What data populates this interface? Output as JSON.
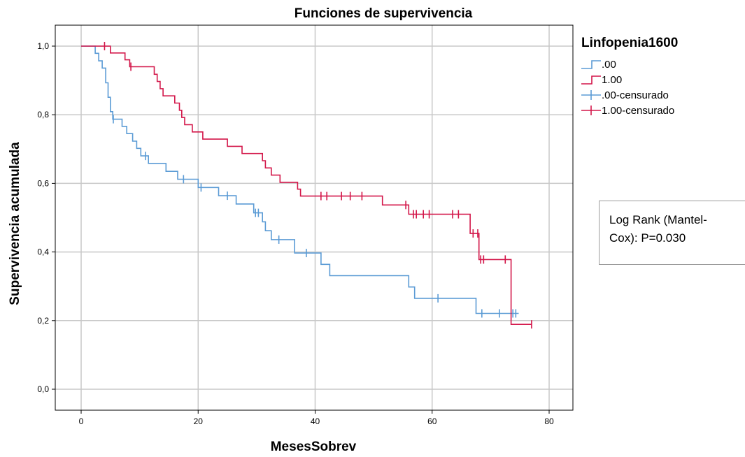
{
  "chart_data": {
    "type": "line",
    "step": true,
    "title": "Funciones de supervivencia",
    "xlabel": "MesesSobrev",
    "ylabel": "Supervivencia acumulada",
    "xlim": [
      -5,
      82
    ],
    "ylim": [
      -0.06,
      1.06
    ],
    "xticks": [
      0,
      20,
      40,
      60,
      80
    ],
    "xtick_labels": [
      "0",
      "20",
      "40",
      "60",
      "80"
    ],
    "yticks": [
      0.0,
      0.2,
      0.4,
      0.6,
      0.8,
      1.0
    ],
    "ytick_labels": [
      "0,0",
      "0,2",
      "0,4",
      "0,6",
      "0,8",
      "1,0"
    ],
    "grid": true,
    "legend_title": "Linfopenia1600",
    "legend_position": "top-right",
    "legend": [
      {
        "label": ".00",
        "kind": "line",
        "color": "#5b9bd5"
      },
      {
        "label": "1.00",
        "kind": "line",
        "color": "#d3174a"
      },
      {
        "label": ".00-censurado",
        "kind": "censor",
        "color": "#5b9bd5"
      },
      {
        "label": "1.00-censurado",
        "kind": "censor",
        "color": "#d3174a"
      }
    ],
    "series": [
      {
        "name": ".00",
        "color": "#5b9bd5",
        "x": [
          0,
          2.4,
          3.0,
          3.6,
          4.2,
          4.6,
          5.0,
          5.4,
          7.0,
          7.8,
          8.8,
          9.5,
          10.2,
          11.5,
          14.5,
          16.5,
          20.0,
          23.5,
          26.5,
          29.5,
          31.0,
          31.5,
          32.5,
          36.5,
          41.0,
          42.5,
          56.0,
          57.0,
          67.0,
          67.5,
          74.8
        ],
        "y": [
          1.0,
          0.979,
          0.957,
          0.936,
          0.893,
          0.851,
          0.809,
          0.787,
          0.766,
          0.745,
          0.723,
          0.702,
          0.68,
          0.658,
          0.635,
          0.612,
          0.588,
          0.564,
          0.54,
          0.514,
          0.488,
          0.462,
          0.436,
          0.397,
          0.364,
          0.331,
          0.298,
          0.265,
          0.265,
          0.221,
          0.221
        ],
        "censored": [
          {
            "x": 5.5,
            "y": 0.787
          },
          {
            "x": 11.0,
            "y": 0.68
          },
          {
            "x": 17.5,
            "y": 0.612
          },
          {
            "x": 20.5,
            "y": 0.588
          },
          {
            "x": 25.0,
            "y": 0.564
          },
          {
            "x": 29.8,
            "y": 0.514
          },
          {
            "x": 30.3,
            "y": 0.514
          },
          {
            "x": 33.8,
            "y": 0.436
          },
          {
            "x": 38.5,
            "y": 0.397
          },
          {
            "x": 61.0,
            "y": 0.265
          },
          {
            "x": 68.5,
            "y": 0.221
          },
          {
            "x": 71.5,
            "y": 0.221
          },
          {
            "x": 73.8,
            "y": 0.221
          },
          {
            "x": 74.3,
            "y": 0.221
          }
        ]
      },
      {
        "name": "1.00",
        "color": "#d3174a",
        "x": [
          0,
          5.0,
          7.5,
          8.3,
          12.5,
          13.0,
          13.5,
          14.0,
          16.0,
          16.8,
          17.2,
          17.7,
          19.0,
          20.8,
          25.0,
          27.5,
          31.0,
          31.5,
          32.5,
          34.0,
          37.0,
          37.5,
          51.5,
          56.0,
          56.5,
          66.5,
          68.0,
          72.8,
          73.5,
          77.0
        ],
        "y": [
          1.0,
          0.98,
          0.96,
          0.94,
          0.918,
          0.897,
          0.876,
          0.855,
          0.834,
          0.813,
          0.792,
          0.771,
          0.75,
          0.729,
          0.708,
          0.687,
          0.666,
          0.645,
          0.624,
          0.603,
          0.583,
          0.563,
          0.537,
          0.51,
          0.51,
          0.454,
          0.378,
          0.378,
          0.189,
          0.189
        ],
        "censored": [
          {
            "x": 4.0,
            "y": 1.0
          },
          {
            "x": 8.5,
            "y": 0.94
          },
          {
            "x": 41.0,
            "y": 0.563
          },
          {
            "x": 42.0,
            "y": 0.563
          },
          {
            "x": 44.5,
            "y": 0.563
          },
          {
            "x": 46.0,
            "y": 0.563
          },
          {
            "x": 48.0,
            "y": 0.563
          },
          {
            "x": 55.5,
            "y": 0.537
          },
          {
            "x": 56.8,
            "y": 0.51
          },
          {
            "x": 57.3,
            "y": 0.51
          },
          {
            "x": 58.5,
            "y": 0.51
          },
          {
            "x": 59.5,
            "y": 0.51
          },
          {
            "x": 63.5,
            "y": 0.51
          },
          {
            "x": 64.5,
            "y": 0.51
          },
          {
            "x": 67.0,
            "y": 0.454
          },
          {
            "x": 67.8,
            "y": 0.454
          },
          {
            "x": 68.3,
            "y": 0.378
          },
          {
            "x": 68.8,
            "y": 0.378
          },
          {
            "x": 72.5,
            "y": 0.378
          },
          {
            "x": 77.0,
            "y": 0.189
          }
        ]
      }
    ]
  },
  "annotation": {
    "line1": "Log Rank (Mantel-",
    "line2": "Cox): P=0.030"
  }
}
